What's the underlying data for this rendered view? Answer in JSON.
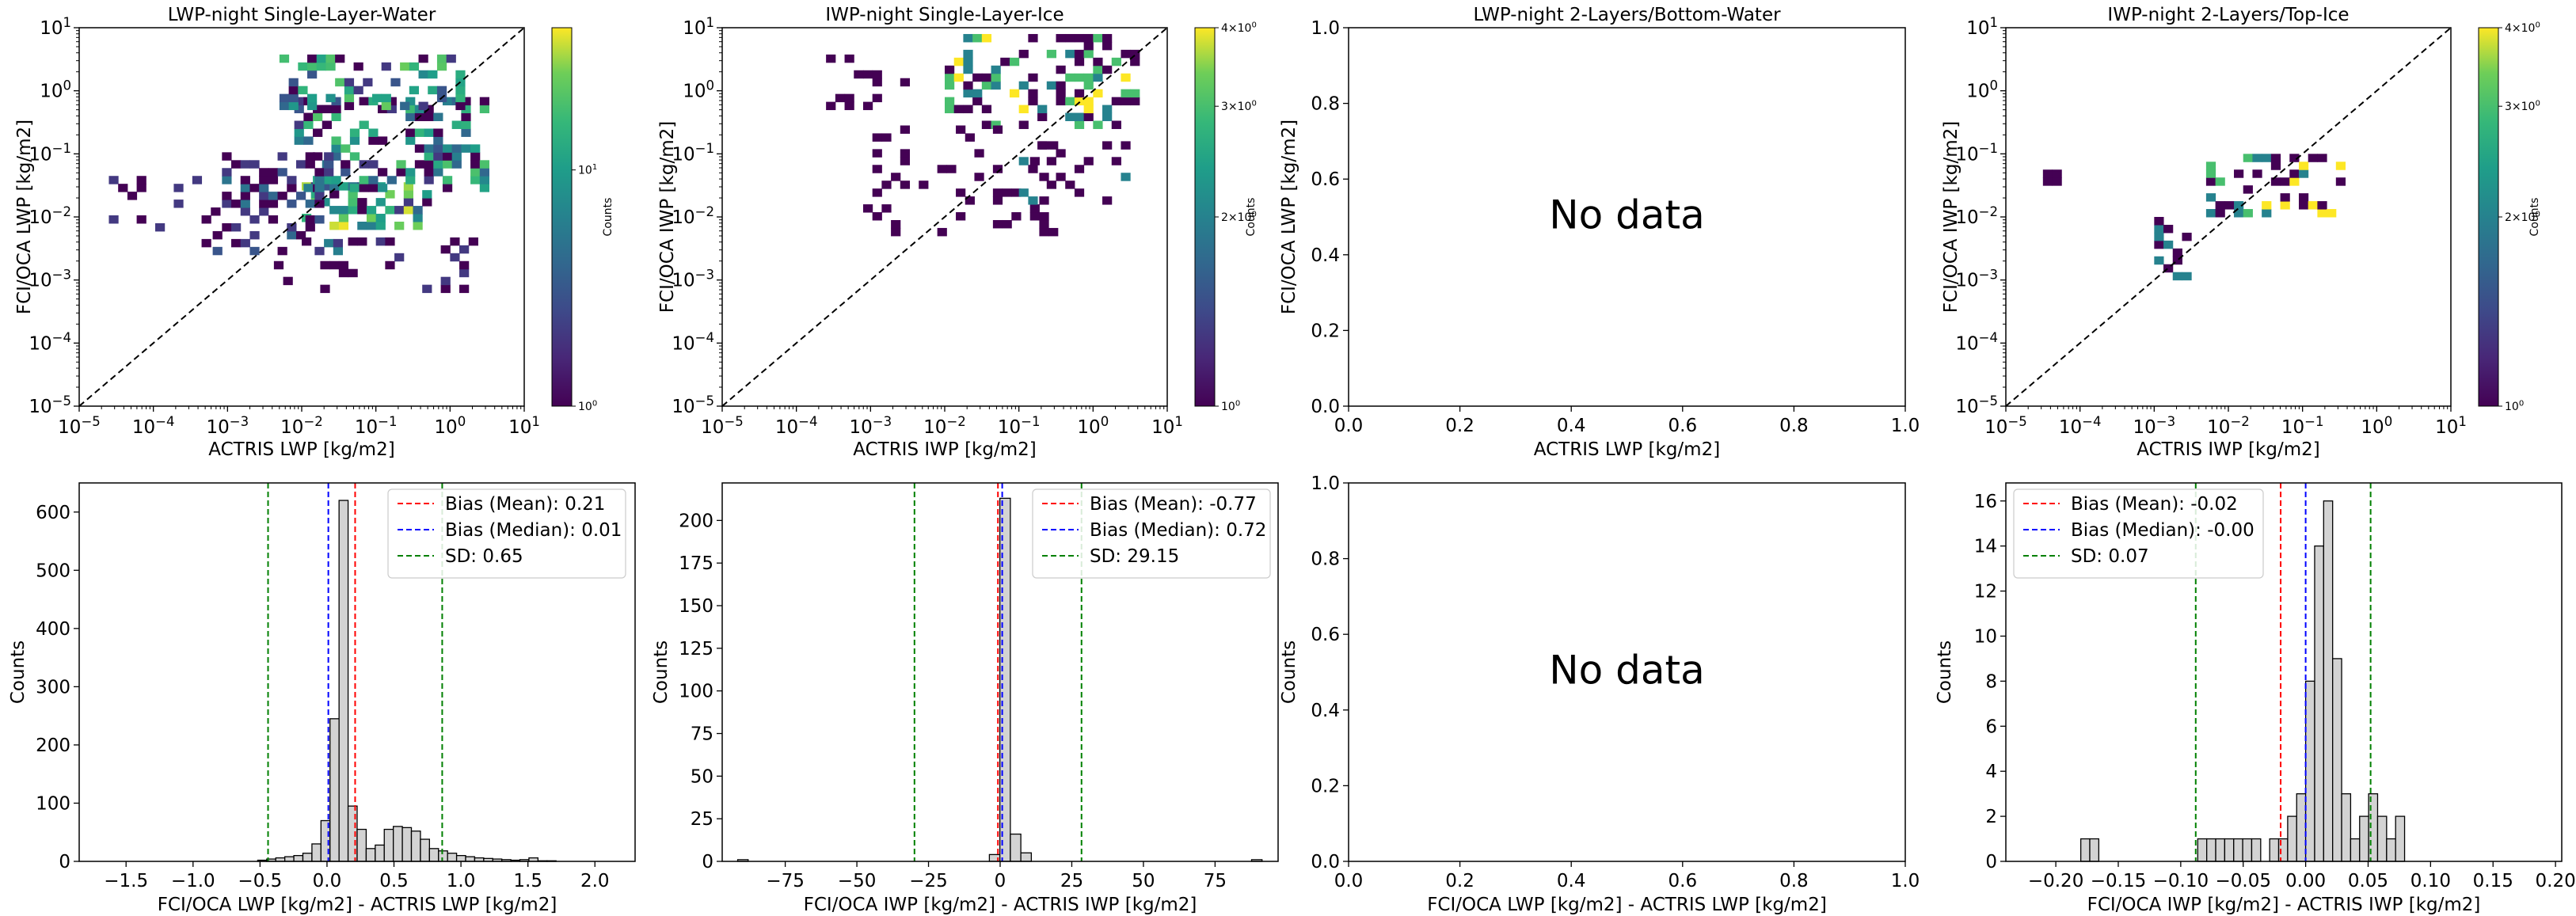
{
  "figure": {
    "no_data_text": "No data",
    "colorbar_label": "Counts"
  },
  "chart_data": [
    {
      "id": "p1",
      "type": "heatmap",
      "scale": "log",
      "title": "LWP-night Single-Layer-Water",
      "xlabel": "ACTRIS LWP [kg/m2]",
      "ylabel": "FCI/OCA LWP [kg/m2]",
      "xlim_exp": [
        -5,
        1
      ],
      "ylim_exp": [
        -5,
        1
      ],
      "xticks": [
        -5,
        -4,
        -3,
        -2,
        -1,
        0,
        1
      ],
      "yticks": [
        -5,
        -4,
        -3,
        -2,
        -1,
        0,
        1
      ],
      "identity_line": true,
      "colorbar": {
        "min": 1,
        "max": 40,
        "ticks": [
          "10^0",
          "10^1"
        ]
      },
      "bins_per_decade": 8,
      "blocks": [
        {
          "x_exp": [
            -2.0,
            -0.3
          ],
          "y_exp": [
            -2.2,
            -1.5
          ],
          "density": 0.55,
          "max_count": 40
        },
        {
          "x_exp": [
            -2.1,
            0.5
          ],
          "y_exp": [
            -1.6,
            -0.2
          ],
          "density": 0.45,
          "max_count": 20
        },
        {
          "x_exp": [
            -2.3,
            0.2
          ],
          "y_exp": [
            -0.3,
            0.5
          ],
          "density": 0.4,
          "max_count": 25
        },
        {
          "x_exp": [
            -3.2,
            -1.5
          ],
          "y_exp": [
            -2.6,
            -1.0
          ],
          "density": 0.3,
          "max_count": 6
        },
        {
          "x_exp": [
            -4.6,
            -3.0
          ],
          "y_exp": [
            -2.6,
            -1.3
          ],
          "density": 0.08,
          "max_count": 2
        },
        {
          "x_exp": [
            -2.5,
            0.4
          ],
          "y_exp": [
            -3.2,
            -2.4
          ],
          "density": 0.1,
          "max_count": 2
        }
      ]
    },
    {
      "id": "p2",
      "type": "heatmap",
      "scale": "log",
      "title": "IWP-night Single-Layer-Ice",
      "xlabel": "ACTRIS IWP [kg/m2]",
      "ylabel": "FCI/OCA IWP [kg/m2]",
      "xlim_exp": [
        -5,
        1
      ],
      "ylim_exp": [
        -5,
        1
      ],
      "xticks": [
        -5,
        -4,
        -3,
        -2,
        -1,
        0,
        1
      ],
      "yticks": [
        -5,
        -4,
        -3,
        -2,
        -1,
        0,
        1
      ],
      "identity_line": true,
      "colorbar": {
        "min": 1,
        "max": 4,
        "ticks": [
          "10^0",
          "2×10^0",
          "3×10^0",
          "4×10^0"
        ]
      },
      "bins_per_decade": 8,
      "blocks": [
        {
          "x_exp": [
            -2.0,
            0.6
          ],
          "y_exp": [
            -0.6,
            0.9
          ],
          "density": 0.35,
          "max_count": 4
        },
        {
          "x_exp": [
            -3.6,
            -2.5
          ],
          "y_exp": [
            -0.3,
            0.5
          ],
          "density": 0.15,
          "max_count": 1
        },
        {
          "x_exp": [
            -3.1,
            -0.5
          ],
          "y_exp": [
            -2.3,
            -0.6
          ],
          "density": 0.15,
          "max_count": 1
        },
        {
          "x_exp": [
            -1.0,
            0.4
          ],
          "y_exp": [
            -1.8,
            -0.8
          ],
          "density": 0.2,
          "max_count": 2
        }
      ]
    },
    {
      "id": "p3",
      "type": "heatmap",
      "scale": "linear",
      "empty": true,
      "title": "LWP-night 2-Layers/Bottom-Water",
      "xlabel": "ACTRIS LWP [kg/m2]",
      "ylabel": "FCI/OCA LWP [kg/m2]",
      "xlim": [
        0,
        1
      ],
      "ylim": [
        0,
        1
      ],
      "xticks": [
        0.0,
        0.2,
        0.4,
        0.6,
        0.8,
        1.0
      ],
      "yticks": [
        0.0,
        0.2,
        0.4,
        0.6,
        0.8,
        1.0
      ]
    },
    {
      "id": "p4",
      "type": "heatmap",
      "scale": "log",
      "title": "IWP-night 2-Layers/Top-Ice",
      "xlabel": "ACTRIS IWP [kg/m2]",
      "ylabel": "FCI/OCA IWP [kg/m2]",
      "xlim_exp": [
        -5,
        1
      ],
      "ylim_exp": [
        -5,
        1
      ],
      "xticks": [
        -5,
        -4,
        -3,
        -2,
        -1,
        0,
        1
      ],
      "yticks": [
        -5,
        -4,
        -3,
        -2,
        -1,
        0,
        1
      ],
      "identity_line": true,
      "colorbar": {
        "min": 1,
        "max": 4,
        "ticks": [
          "10^0",
          "2×10^0",
          "3×10^0",
          "4×10^0"
        ]
      },
      "bins_per_decade": 8,
      "blocks": [
        {
          "x_exp": [
            -2.3,
            -0.5
          ],
          "y_exp": [
            -2.0,
            -1.0
          ],
          "density": 0.35,
          "max_count": 4
        },
        {
          "x_exp": [
            -4.5,
            -4.3
          ],
          "y_exp": [
            -1.5,
            -1.3
          ],
          "density": 1.0,
          "max_count": 1
        },
        {
          "x_exp": [
            -3.0,
            -2.5
          ],
          "y_exp": [
            -3.0,
            -2.0
          ],
          "density": 0.4,
          "max_count": 2
        }
      ]
    },
    {
      "id": "p5",
      "type": "bar",
      "xlabel": "FCI/OCA LWP [kg/m2] - ACTRIS LWP [kg/m2]",
      "ylabel": "Counts",
      "xlim": [
        -1.85,
        2.3
      ],
      "ylim": [
        0,
        650
      ],
      "xticks": [
        -1.5,
        -1.0,
        -0.5,
        0.0,
        0.5,
        1.0,
        1.5,
        2.0
      ],
      "yticks": [
        0,
        100,
        200,
        300,
        400,
        500,
        600
      ],
      "tick_decimals": 1,
      "bin_start": -1.8,
      "bin_width": 0.0675,
      "counts": [
        0,
        0,
        0,
        0,
        0,
        0,
        0,
        0,
        0,
        0,
        0,
        0,
        0,
        0,
        0,
        0,
        0,
        0,
        0,
        2,
        4,
        6,
        8,
        10,
        14,
        30,
        70,
        245,
        620,
        95,
        55,
        22,
        28,
        55,
        60,
        58,
        52,
        38,
        22,
        18,
        14,
        10,
        8,
        6,
        5,
        4,
        3,
        2,
        3,
        6,
        1,
        1,
        0,
        0,
        0,
        0,
        0,
        0,
        0,
        0
      ],
      "lines": [
        {
          "x": 0.21,
          "color": "#ff0000",
          "label": "Bias (Mean): 0.21"
        },
        {
          "x": 0.01,
          "color": "#0000ff",
          "label": "Bias (Median): 0.01"
        },
        {
          "x": -0.44,
          "color": "#008000",
          "label": "SD: 0.65"
        },
        {
          "x": 0.86,
          "color": "#008000"
        }
      ]
    },
    {
      "id": "p6",
      "type": "bar",
      "xlabel": "FCI/OCA IWP [kg/m2] - ACTRIS IWP [kg/m2]",
      "ylabel": "Counts",
      "xlim": [
        -97,
        97
      ],
      "ylim": [
        0,
        222
      ],
      "xticks": [
        -75,
        -50,
        -25,
        0,
        25,
        50,
        75
      ],
      "yticks": [
        0,
        25,
        50,
        75,
        100,
        125,
        150,
        175,
        200
      ],
      "tick_decimals": 0,
      "bin_start": -91.6,
      "bin_width": 3.66,
      "counts": [
        1,
        0,
        0,
        0,
        0,
        0,
        0,
        0,
        0,
        0,
        0,
        0,
        0,
        0,
        0,
        0,
        0,
        0,
        0,
        0,
        0,
        0,
        0,
        0,
        4,
        213,
        16,
        5,
        0,
        0,
        0,
        0,
        0,
        0,
        0,
        0,
        0,
        0,
        0,
        0,
        0,
        0,
        0,
        0,
        0,
        0,
        0,
        0,
        0,
        1
      ],
      "lines": [
        {
          "x": -0.77,
          "color": "#ff0000",
          "label": "Bias (Mean): -0.77"
        },
        {
          "x": 0.72,
          "color": "#0000ff",
          "label": "Bias (Median): 0.72"
        },
        {
          "x": -29.9,
          "color": "#008000",
          "label": "SD: 29.15"
        },
        {
          "x": 28.4,
          "color": "#008000"
        }
      ]
    },
    {
      "id": "p7",
      "type": "bar",
      "empty": true,
      "xlabel": "FCI/OCA LWP [kg/m2] - ACTRIS LWP [kg/m2]",
      "ylabel": "Counts",
      "xlim": [
        0,
        1
      ],
      "ylim": [
        0,
        1
      ],
      "xticks": [
        0.0,
        0.2,
        0.4,
        0.6,
        0.8,
        1.0
      ],
      "yticks": [
        0.0,
        0.2,
        0.4,
        0.6,
        0.8,
        1.0
      ],
      "tick_decimals": 1
    },
    {
      "id": "p8",
      "type": "bar",
      "xlabel": "FCI/OCA IWP [kg/m2] - ACTRIS IWP [kg/m2]",
      "ylabel": "Counts",
      "xlim": [
        -0.24,
        0.205
      ],
      "ylim": [
        0,
        16.8
      ],
      "xticks": [
        -0.2,
        -0.15,
        -0.1,
        -0.05,
        0.0,
        0.05,
        0.1,
        0.15,
        0.2
      ],
      "yticks": [
        0,
        2,
        4,
        6,
        8,
        10,
        12,
        14,
        16
      ],
      "tick_decimals": 2,
      "bin_start": -0.18,
      "bin_width": 0.0072,
      "counts": [
        1,
        1,
        0,
        0,
        0,
        0,
        0,
        0,
        0,
        0,
        0,
        0,
        0,
        1,
        1,
        1,
        1,
        1,
        1,
        1,
        0,
        1,
        1,
        2,
        3,
        8,
        14,
        16,
        9,
        3,
        1,
        2,
        3,
        2,
        1,
        2,
        0,
        0,
        0,
        0
      ],
      "lines": [
        {
          "x": -0.02,
          "color": "#ff0000",
          "label": "Bias (Mean): -0.02"
        },
        {
          "x": 0.0,
          "color": "#0000ff",
          "label": "Bias (Median): -0.00"
        },
        {
          "x": -0.088,
          "color": "#008000",
          "label": "SD: 0.07"
        },
        {
          "x": 0.052,
          "color": "#008000"
        }
      ]
    }
  ]
}
